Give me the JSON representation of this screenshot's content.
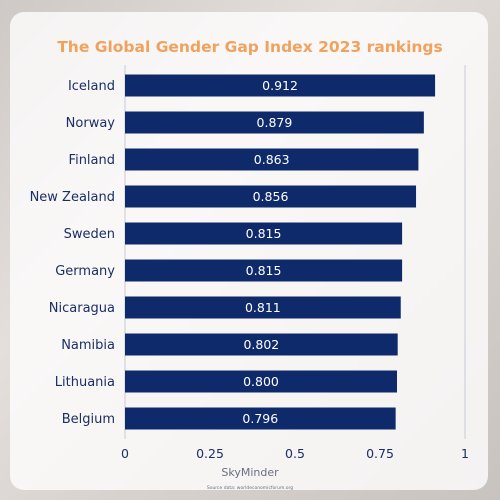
{
  "chart_data": {
    "type": "bar",
    "orientation": "horizontal",
    "title": "The Global Gender Gap Index 2023 rankings",
    "categories": [
      "Iceland",
      "Norway",
      "Finland",
      "New Zealand",
      "Sweden",
      "Germany",
      "Nicaragua",
      "Namibia",
      "Lithuania",
      "Belgium"
    ],
    "values": [
      0.912,
      0.879,
      0.863,
      0.856,
      0.815,
      0.815,
      0.811,
      0.802,
      0.8,
      0.796
    ],
    "value_labels": [
      "0.912",
      "0.879",
      "0.863",
      "0.856",
      "0.815",
      "0.815",
      "0.811",
      "0.802",
      "0.800",
      "0.796"
    ],
    "xlim": [
      0,
      1
    ],
    "xticks": [
      0,
      0.25,
      0.5,
      0.75,
      1
    ],
    "xtick_labels": [
      "0",
      "0.25",
      "0.5",
      "0.75",
      "1"
    ],
    "xlabel": "",
    "ylabel": "",
    "grid": false,
    "legend": "none"
  },
  "footer": {
    "brand": "SkyMinder",
    "source": "Source data: worldeconomicforum.org"
  },
  "colors": {
    "bar": "#0f2a6b",
    "title": "#f0a25e",
    "label": "#1b2f64",
    "axis_line": "#c8cbd6"
  }
}
